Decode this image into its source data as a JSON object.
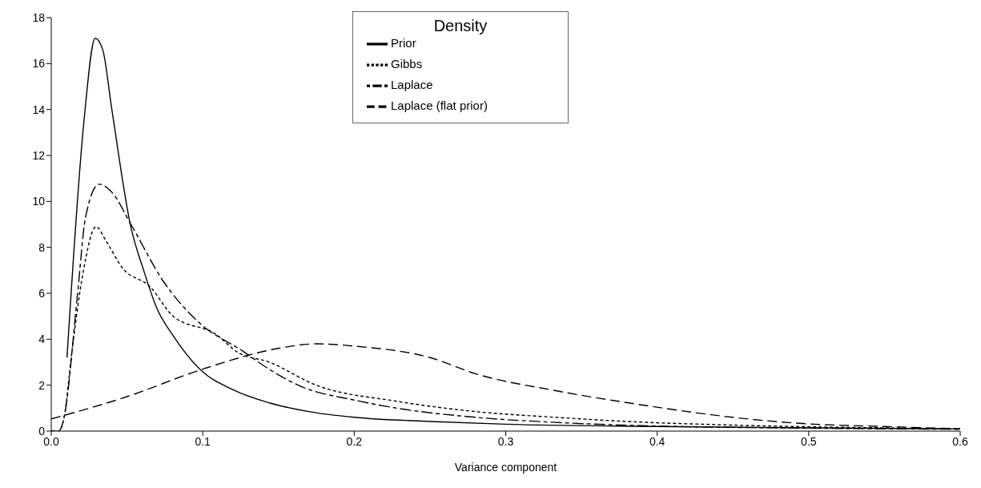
{
  "chart_data": {
    "type": "line",
    "xlabel": "Variance component",
    "legend_title": "Density",
    "legend": "top",
    "marker": "none",
    "xlim": [
      0,
      0.6
    ],
    "ylim": [
      0,
      18
    ],
    "xticks": [
      {
        "value": 0,
        "label": "0.0"
      },
      {
        "value": 0.1,
        "label": "0.1"
      },
      {
        "value": 0.2,
        "label": "0.2"
      },
      {
        "value": 0.3,
        "label": "0.3"
      },
      {
        "value": 0.4,
        "label": "0.4"
      },
      {
        "value": 0.5,
        "label": "0.5"
      },
      {
        "value": 0.6,
        "label": "0.6"
      }
    ],
    "yticks": [
      0,
      2,
      4,
      6,
      8,
      10,
      12,
      14,
      16,
      18
    ],
    "grid": false,
    "series": [
      {
        "name": "Prior",
        "color": "#000000",
        "line_style": "solid",
        "x": [
          0.0104,
          0.0216,
          0.029,
          0.034,
          0.04,
          0.0525,
          0.061,
          0.07,
          0.08,
          0.098,
          0.12,
          0.144,
          0.17,
          0.2,
          0.25,
          0.3,
          0.4,
          0.5,
          0.6
        ],
        "values": [
          3.2,
          13.5,
          17.1,
          16.6,
          14,
          8.9,
          7,
          5.3,
          4.2,
          2.7,
          1.8,
          1.23,
          0.85,
          0.6,
          0.42,
          0.3,
          0.2,
          0.14,
          0.1
        ]
      },
      {
        "name": "Gibbs",
        "color": "#000000",
        "line_style": "dotted",
        "x": [
          0,
          0.005,
          0.0085,
          0.0137,
          0.021,
          0.0296,
          0.036,
          0.047,
          0.065,
          0.0805,
          0.109,
          0.1226,
          0.144,
          0.175,
          0.228,
          0.28,
          0.333,
          0.386,
          0.44,
          0.491,
          0.55,
          0.6
        ],
        "values": [
          0,
          0,
          0.6,
          3.5,
          6.9,
          8.9,
          8.3,
          7.1,
          6.3,
          5.0,
          4.2,
          3.45,
          3.0,
          2.0,
          1.3,
          0.85,
          0.6,
          0.4,
          0.28,
          0.2,
          0.14,
          0.1
        ]
      },
      {
        "name": "Laplace",
        "color": "#000000",
        "line_style": "dashed",
        "x": [
          0,
          0.005,
          0.0085,
          0.0174,
          0.0226,
          0.0316,
          0.04,
          0.0526,
          0.0737,
          0.098,
          0.126,
          0.1437,
          0.165,
          0.2,
          0.228,
          0.28,
          0.333,
          0.4,
          0.5,
          0.6
        ],
        "values": [
          0,
          0,
          0.6,
          6.0,
          9.3,
          10.75,
          10.4,
          9.0,
          6.55,
          4.7,
          3.5,
          2.7,
          1.94,
          1.35,
          1.0,
          0.6,
          0.38,
          0.22,
          0.13,
          0.08
        ]
      },
      {
        "name": "Laplace (flat prior)",
        "color": "#000000",
        "line_style": "dashed",
        "x": [
          0,
          0.05,
          0.1,
          0.15,
          0.175,
          0.2,
          0.25,
          0.28,
          0.333,
          0.386,
          0.45,
          0.491,
          0.55,
          0.6
        ],
        "values": [
          0.53,
          1.5,
          2.7,
          3.6,
          3.8,
          3.7,
          3.2,
          2.5,
          1.76,
          1.18,
          0.6,
          0.35,
          0.2,
          0.1
        ]
      }
    ]
  }
}
